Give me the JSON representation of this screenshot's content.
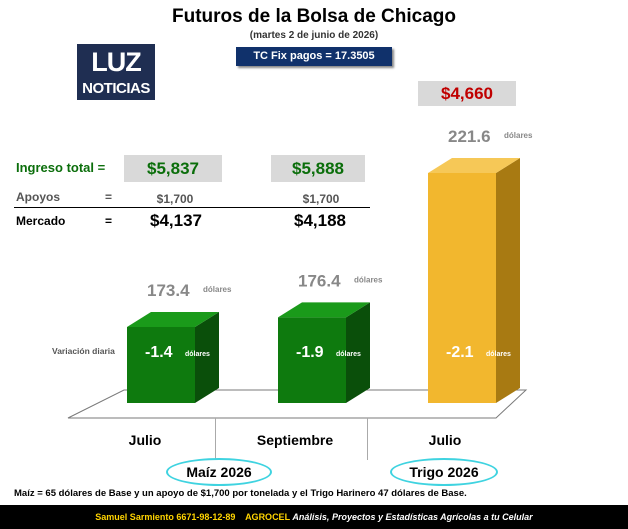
{
  "title": "Futuros de la Bolsa de Chicago",
  "subtitle": "(martes 2 de junio de 2026)",
  "exchange_rate": "TC Fix pagos = 17.3505",
  "logo": {
    "top": "LUZ",
    "bottom": "NOTICIAS"
  },
  "rows": {
    "ingreso_label": "Ingreso total =",
    "apoyos_label": "Apoyos",
    "mercado_label": "Mercado",
    "equals": "=",
    "ingreso_values": [
      "$5,837",
      "$5,888"
    ],
    "apoyos_values": [
      "$1,700",
      "$1,700"
    ],
    "mercado_values": [
      "$4,137",
      "$4,188"
    ]
  },
  "trigo_ingreso": "$4,660",
  "variacion_label": "Variación diaria",
  "unit": "dólares",
  "groups": {
    "maiz": "Maíz 2026",
    "trigo": "Trigo 2026"
  },
  "colors": {
    "corn": "#0e7a0e",
    "wheat": "#f2b72e",
    "green_text": "#0b6e0b",
    "red_text": "#c00000"
  },
  "footnote": "Maíz = 65 dólares de Base y un apoyo de $1,700 por tonelada y el Trigo Harinero 47 dólares de Base.",
  "footer": {
    "name": "Samuel Sarmiento",
    "phone": "6671-98-12-89",
    "brand": "AGROCEL",
    "tagline": "Análisis, Proyectos y Estadísticas Agrícolas a tu Celular"
  },
  "chart_data": {
    "type": "bar",
    "categories": [
      "Julio",
      "Septiembre",
      "Julio"
    ],
    "values": [
      173.4,
      176.4,
      221.6
    ],
    "value_labels": [
      "173.4",
      "176.4",
      "221.6"
    ],
    "daily_change": [
      -1.4,
      -1.9,
      -2.1
    ],
    "daily_change_labels": [
      "-1.4",
      "-1.9",
      "-2.1"
    ],
    "ylabel": "",
    "ylim": [
      0,
      230
    ]
  }
}
